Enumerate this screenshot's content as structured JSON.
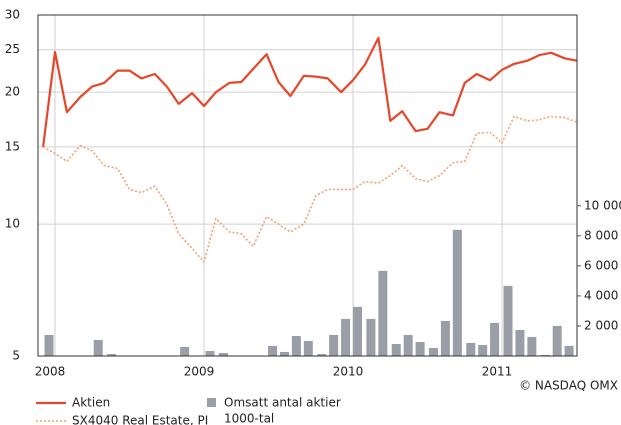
{
  "chart_data": {
    "type": "line",
    "yscale": "log",
    "ylim": [
      5,
      30
    ],
    "yticks": [
      5,
      10,
      15,
      20,
      25,
      30
    ],
    "y2lim": [
      0,
      22700
    ],
    "y2ticks": [
      {
        "value": 2000,
        "label": "2 000"
      },
      {
        "value": 4000,
        "label": "4 000"
      },
      {
        "value": 6000,
        "label": "6 000"
      },
      {
        "value": 8000,
        "label": "8 000"
      },
      {
        "value": 10000,
        "label": "10 000"
      }
    ],
    "xlim": [
      2007.886,
      2011.503
    ],
    "xticks": [
      2008,
      2009,
      2010,
      2011
    ],
    "grid": true,
    "x": [
      2007.92,
      2008.0,
      2008.08,
      2008.17,
      2008.25,
      2008.33,
      2008.42,
      2008.5,
      2008.58,
      2008.67,
      2008.75,
      2008.83,
      2008.92,
      2009.0,
      2009.08,
      2009.17,
      2009.25,
      2009.33,
      2009.42,
      2009.5,
      2009.58,
      2009.67,
      2009.75,
      2009.83,
      2009.92,
      2010.0,
      2010.08,
      2010.17,
      2010.25,
      2010.33,
      2010.42,
      2010.5,
      2010.58,
      2010.67,
      2010.75,
      2010.83,
      2010.92,
      2011.0,
      2011.08,
      2011.17,
      2011.25,
      2011.33,
      2011.42,
      2011.5
    ],
    "series": [
      {
        "name": "Aktien",
        "color": "#e8462a",
        "style": "solid",
        "values": [
          15.0,
          24.7,
          18.0,
          19.5,
          20.6,
          21.0,
          22.4,
          22.4,
          21.5,
          22.0,
          20.6,
          18.8,
          19.9,
          18.6,
          20.0,
          21.0,
          21.1,
          22.6,
          24.4,
          21.1,
          19.6,
          21.8,
          21.7,
          21.5,
          20.0,
          21.3,
          23.1,
          26.6,
          17.2,
          18.1,
          16.3,
          16.5,
          18.0,
          17.7,
          21.0,
          22.0,
          21.3,
          22.5,
          23.2,
          23.6,
          24.3,
          24.6,
          23.9,
          23.6
        ]
      },
      {
        "name": "SX4040 Real Estate, PI",
        "color": "#f4a070",
        "style": "dotted",
        "values": [
          15.0,
          14.5,
          13.9,
          15.1,
          14.7,
          13.6,
          13.4,
          12.0,
          11.8,
          12.2,
          11.1,
          9.5,
          8.8,
          8.2,
          10.3,
          9.6,
          9.5,
          8.9,
          10.4,
          10.0,
          9.6,
          10.0,
          11.6,
          12.0,
          12.0,
          12.0,
          12.5,
          12.4,
          12.9,
          13.6,
          12.7,
          12.5,
          12.9,
          13.8,
          13.9,
          16.1,
          16.2,
          15.3,
          17.6,
          17.2,
          17.3,
          17.6,
          17.5,
          17.1
        ]
      },
      {
        "name": "Omsatt antal aktier",
        "color": "#9a9ea6",
        "kind": "bar",
        "axis": "y2",
        "x": [
          2007.96,
          2008.29,
          2008.38,
          2008.87,
          2009.04,
          2009.13,
          2009.46,
          2009.54,
          2009.62,
          2009.7,
          2009.79,
          2009.87,
          2009.95,
          2010.03,
          2010.12,
          2010.2,
          2010.29,
          2010.37,
          2010.45,
          2010.54,
          2010.62,
          2010.7,
          2010.79,
          2010.87,
          2010.95,
          2011.04,
          2011.12,
          2011.2,
          2011.29,
          2011.37,
          2011.45
        ],
        "values": [
          1400,
          1070,
          130,
          600,
          330,
          200,
          670,
          270,
          1330,
          1000,
          130,
          1400,
          2470,
          3270,
          2470,
          5670,
          800,
          1400,
          930,
          530,
          2330,
          8400,
          870,
          730,
          2200,
          4670,
          1730,
          1270,
          70,
          2000,
          670
        ]
      }
    ],
    "y2_unit": "1000-tal",
    "source": "© NASDAQ OMX"
  }
}
